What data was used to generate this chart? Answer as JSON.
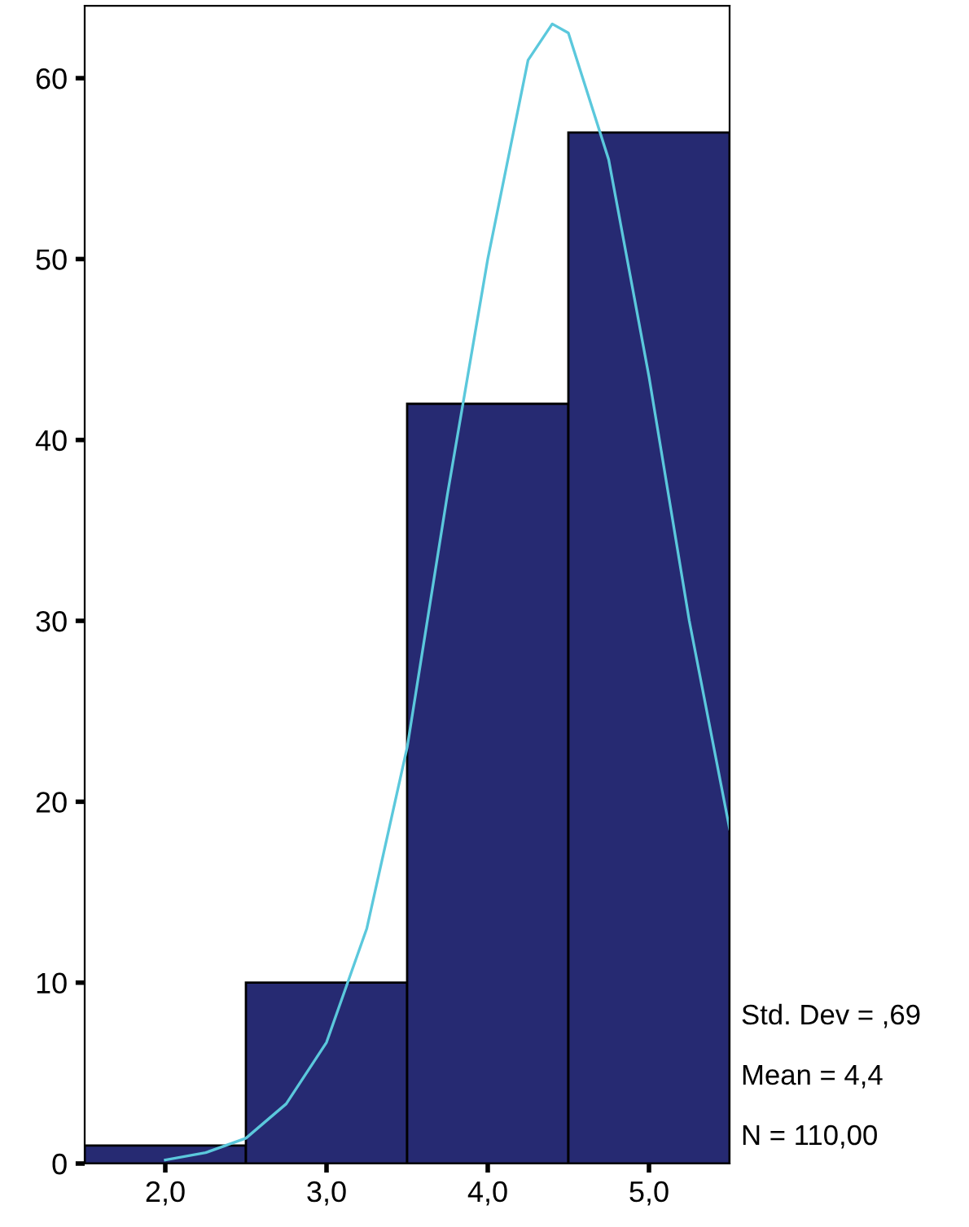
{
  "chart_data": {
    "type": "histogram",
    "bins": [
      1.5,
      2.5,
      3.5,
      4.5,
      5.5
    ],
    "values": [
      1,
      10,
      42,
      57
    ],
    "color": "#262a72",
    "series": [
      {
        "type": "line",
        "color": "#5bc8dc",
        "x": [
          2.0,
          2.25,
          2.5,
          2.75,
          3.0,
          3.25,
          3.5,
          3.75,
          4.0,
          4.25,
          4.4,
          4.5,
          4.75,
          5.0,
          5.25,
          5.5
        ],
        "values": [
          0.2,
          0.6,
          1.4,
          3.3,
          6.7,
          13,
          23,
          37,
          50,
          61,
          63,
          62.5,
          55.5,
          43.5,
          30,
          18.5
        ]
      }
    ],
    "xlim": [
      1.5,
      5.5
    ],
    "xticks": [
      {
        "value": 2,
        "label": "2,0"
      },
      {
        "value": 3,
        "label": "3,0"
      },
      {
        "value": 4,
        "label": "4,0"
      },
      {
        "value": 5,
        "label": "5,0"
      }
    ],
    "ylim": [
      0,
      64
    ],
    "yticks": [
      0,
      10,
      20,
      30,
      40,
      50,
      60
    ],
    "grid": false,
    "legend": false,
    "annotations": [
      "Std. Dev = ,69",
      "Mean = 4,4",
      "N = 110,00"
    ]
  }
}
